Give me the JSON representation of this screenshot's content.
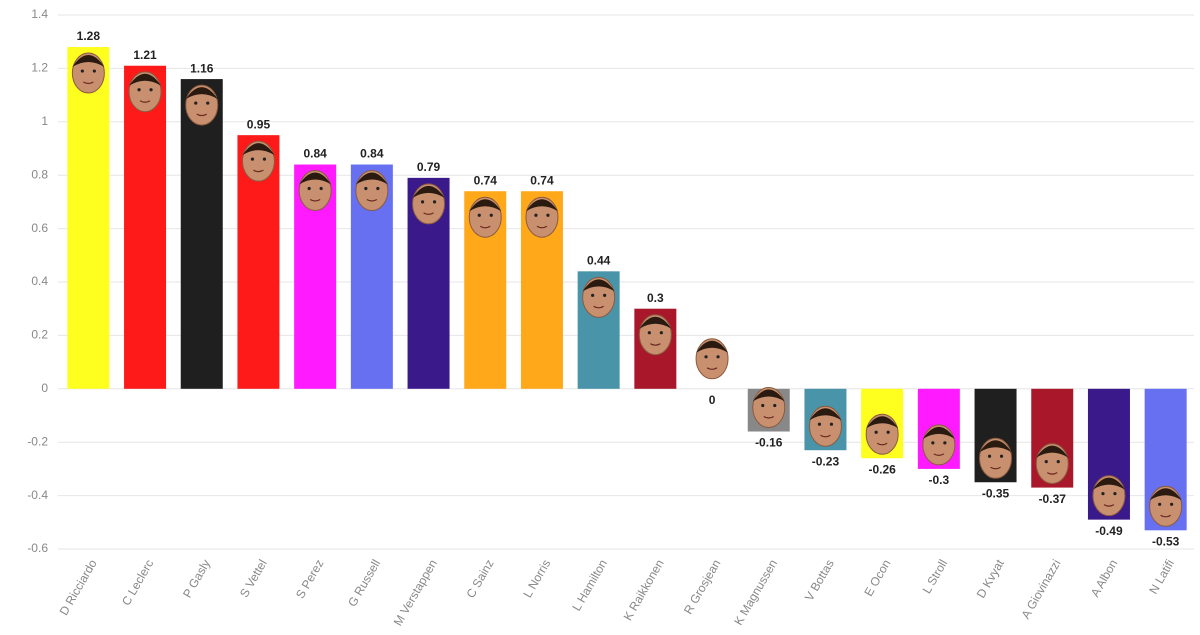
{
  "chart_data": {
    "type": "bar",
    "categories": [
      "D Ricciardo",
      "C Leclerc",
      "P Gasly",
      "S Vettel",
      "S Perez",
      "G Russell",
      "M Verstappen",
      "C Sainz",
      "L Norris",
      "L Hamilton",
      "K Raikkonen",
      "R Grosjean",
      "K Magnussen",
      "V Bottas",
      "E Ocon",
      "L Stroll",
      "D Kvyat",
      "A Giovinazzi",
      "A Albon",
      "N Latifi"
    ],
    "values": [
      1.28,
      1.21,
      1.16,
      0.95,
      0.84,
      0.84,
      0.79,
      0.74,
      0.74,
      0.44,
      0.3,
      0,
      -0.16,
      -0.23,
      -0.26,
      -0.3,
      -0.35,
      -0.37,
      -0.49,
      -0.53
    ],
    "colors": [
      "#ffff1f",
      "#ff1a1a",
      "#1f1f1f",
      "#ff1a1a",
      "#ff1aff",
      "#6670f0",
      "#3a1a8a",
      "#ffa81a",
      "#ffa81a",
      "#4a94aa",
      "#a8182a",
      "#888888",
      "#888888",
      "#4a94aa",
      "#ffff1f",
      "#ff1aff",
      "#1f1f1f",
      "#a8182a",
      "#3a1a8a",
      "#6670f0"
    ],
    "ylim": [
      -0.6,
      1.4
    ],
    "yticks": [
      -0.6,
      -0.4,
      -0.2,
      0,
      0.2,
      0.4,
      0.6,
      0.8,
      1,
      1.2,
      1.4
    ],
    "grid": true
  }
}
